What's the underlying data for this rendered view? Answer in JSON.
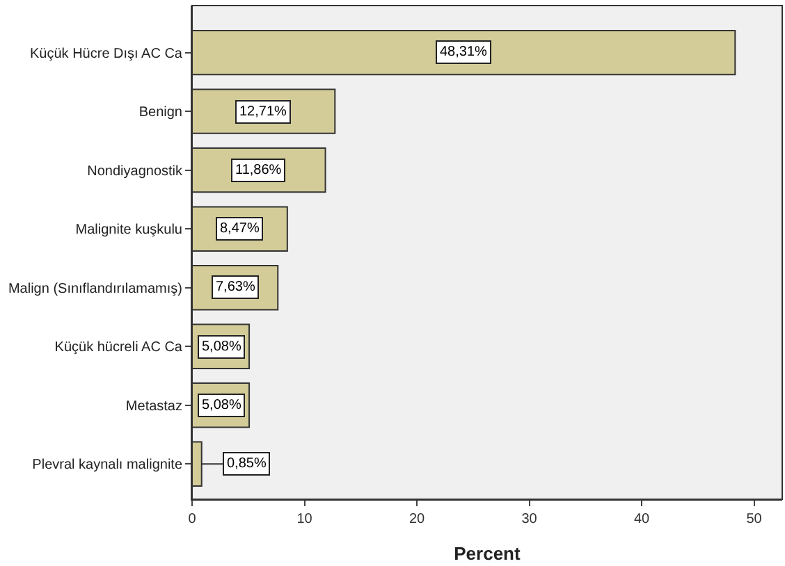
{
  "chart_data": {
    "type": "bar",
    "orientation": "horizontal",
    "xlabel": "Percent",
    "categories": [
      "Küçük Hücre Dışı AC Ca",
      "Benign",
      "Nondiyagnostik",
      "Malignite kuşkulu",
      "Malign (Sınıflandırılamamış)",
      "Küçük hücreli AC Ca",
      "Metastaz",
      "Plevral kaynalı malignite"
    ],
    "values": [
      48.31,
      12.71,
      11.86,
      8.47,
      7.63,
      5.08,
      5.08,
      0.85
    ],
    "value_labels": [
      "48,31%",
      "12,71%",
      "11,86%",
      "8,47%",
      "7,63%",
      "5,08%",
      "5,08%",
      "0,85%"
    ],
    "color": "#d3cc98",
    "xlim": [
      0,
      52.5
    ],
    "xticks": [
      0,
      10,
      20,
      30,
      40,
      50
    ],
    "grid": false,
    "legend": false
  }
}
